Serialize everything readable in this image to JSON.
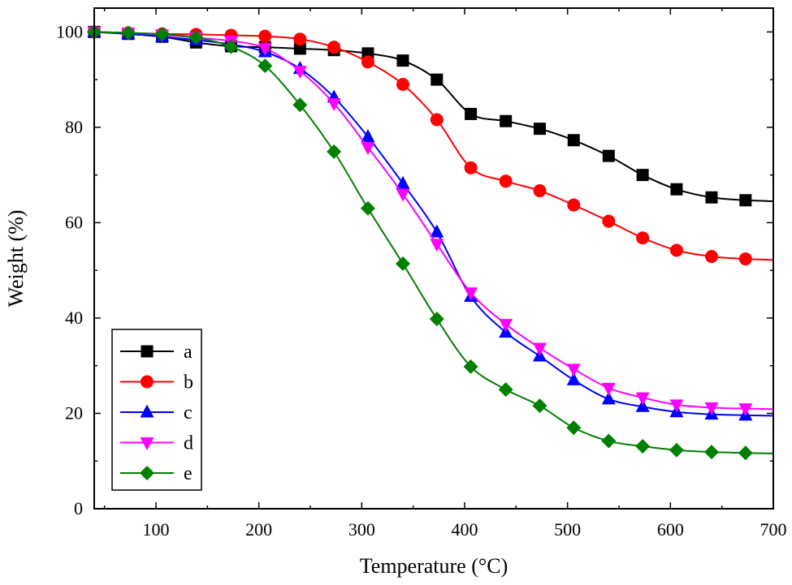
{
  "chart_data": {
    "type": "line",
    "title": "",
    "xlabel": "Temperature (°C)",
    "ylabel": "Weight (%)",
    "xlim": [
      40,
      700
    ],
    "ylim": [
      0,
      105
    ],
    "xticks": [
      100,
      200,
      300,
      400,
      500,
      600,
      700
    ],
    "yticks": [
      0,
      20,
      40,
      60,
      80,
      100
    ],
    "legend_position": "bottom-left",
    "series": [
      {
        "name": "a",
        "color": "#000000",
        "marker": "square",
        "x": [
          40,
          73,
          106,
          139,
          173,
          206,
          240,
          273,
          306,
          340,
          373,
          406,
          440,
          473,
          506,
          540,
          573,
          606,
          640,
          673,
          700
        ],
        "y": [
          100,
          99.6,
          99,
          97.8,
          97,
          96.8,
          96.5,
          96.2,
          95.5,
          94,
          90,
          82.8,
          81.3,
          79.7,
          77.3,
          74,
          70,
          67,
          65.3,
          64.7,
          64.5
        ],
        "markers_x": [
          40,
          73,
          106,
          139,
          173,
          206,
          240,
          273,
          306,
          340,
          373,
          406,
          440,
          473,
          506,
          540,
          573,
          606,
          640,
          673
        ]
      },
      {
        "name": "b",
        "color": "#ff0000",
        "marker": "circle",
        "x": [
          40,
          73,
          106,
          139,
          173,
          206,
          240,
          273,
          306,
          340,
          373,
          406,
          440,
          473,
          506,
          540,
          573,
          606,
          640,
          673,
          700
        ],
        "y": [
          100,
          99.8,
          99.6,
          99.5,
          99.3,
          99.1,
          98.5,
          96.8,
          93.7,
          89,
          81.6,
          71.5,
          68.7,
          66.7,
          63.7,
          60.3,
          56.8,
          54.2,
          52.9,
          52.4,
          52.2
        ],
        "markers_x": [
          40,
          73,
          106,
          139,
          173,
          206,
          240,
          273,
          306,
          340,
          373,
          406,
          440,
          473,
          506,
          540,
          573,
          606,
          640,
          673
        ]
      },
      {
        "name": "c",
        "color": "#0000ff",
        "marker": "triangle-up",
        "x": [
          40,
          73,
          106,
          139,
          173,
          206,
          240,
          273,
          306,
          340,
          373,
          406,
          440,
          473,
          506,
          540,
          573,
          606,
          640,
          673,
          700
        ],
        "y": [
          100,
          99.6,
          99,
          98.3,
          97.4,
          95.8,
          92.3,
          86.3,
          78,
          68.2,
          58,
          44.5,
          37,
          32,
          27,
          23,
          21.4,
          20.3,
          19.8,
          19.6,
          19.5
        ],
        "markers_x": [
          40,
          73,
          106,
          139,
          173,
          206,
          240,
          273,
          306,
          340,
          373,
          406,
          440,
          473,
          506,
          540,
          573,
          606,
          640,
          673
        ]
      },
      {
        "name": "d",
        "color": "#ff00ff",
        "marker": "triangle-down",
        "x": [
          40,
          73,
          106,
          139,
          173,
          206,
          240,
          273,
          306,
          340,
          373,
          406,
          440,
          473,
          506,
          540,
          573,
          606,
          640,
          673,
          700
        ],
        "y": [
          100,
          99.8,
          99.4,
          98.8,
          98.1,
          96.6,
          91.8,
          85,
          75.8,
          66,
          55.5,
          45.3,
          38.7,
          33.7,
          29.3,
          25.3,
          23.3,
          21.8,
          21.2,
          21,
          20.9
        ],
        "markers_x": [
          40,
          73,
          106,
          139,
          173,
          206,
          240,
          273,
          306,
          340,
          373,
          406,
          440,
          473,
          506,
          540,
          573,
          606,
          640,
          673
        ]
      },
      {
        "name": "e",
        "color": "#008000",
        "marker": "diamond",
        "x": [
          40,
          73,
          106,
          139,
          173,
          206,
          240,
          273,
          306,
          340,
          373,
          406,
          440,
          473,
          506,
          540,
          573,
          606,
          640,
          673,
          700
        ],
        "y": [
          100,
          99.8,
          99.5,
          98.8,
          96.9,
          92.9,
          84.7,
          74.9,
          63,
          51.4,
          39.8,
          29.8,
          25,
          21.6,
          17,
          14.2,
          13.1,
          12.3,
          11.9,
          11.7,
          11.6
        ],
        "markers_x": [
          40,
          73,
          106,
          139,
          173,
          206,
          240,
          273,
          306,
          340,
          373,
          406,
          440,
          473,
          506,
          540,
          573,
          606,
          640,
          673
        ]
      }
    ]
  }
}
